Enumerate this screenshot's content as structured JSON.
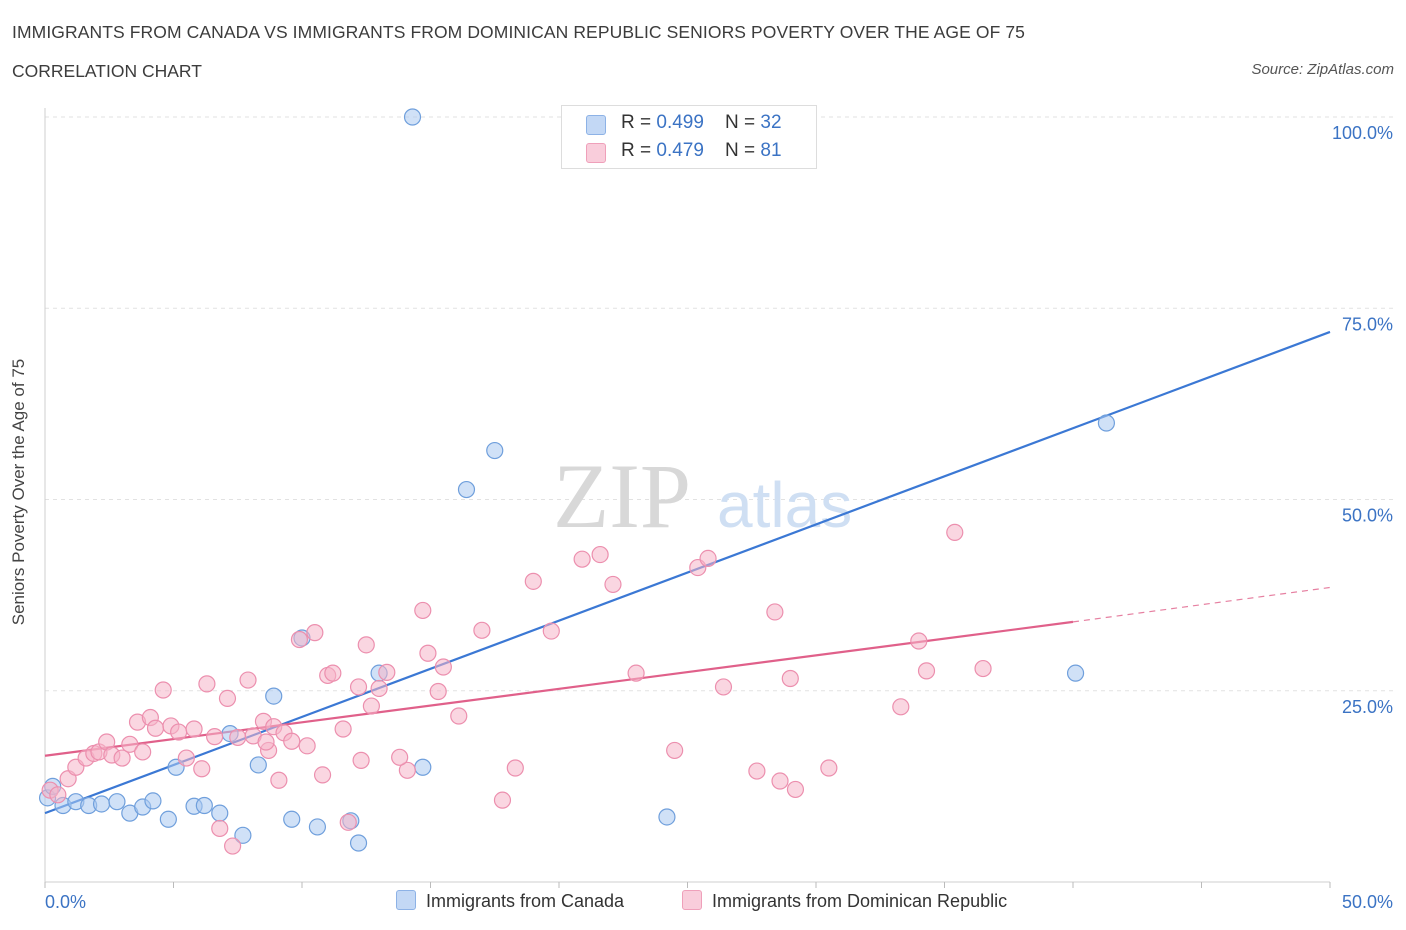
{
  "header": {
    "title": "IMMIGRANTS FROM CANADA VS IMMIGRANTS FROM DOMINICAN REPUBLIC SENIORS POVERTY OVER THE AGE OF 75",
    "subtitle": "CORRELATION CHART",
    "source": "Source: ZipAtlas.com"
  },
  "watermark": {
    "zip": "ZIP",
    "atlas": "atlas"
  },
  "legend": {
    "rows": [
      {
        "r_label": "R = ",
        "r_value": "0.499",
        "n_label": "N = ",
        "n_value": "32",
        "color": "#a9c8f0"
      },
      {
        "r_label": "R = ",
        "r_value": "0.479",
        "n_label": "N = ",
        "n_value": "81",
        "color": "#f5b5c9"
      }
    ]
  },
  "bottom_legend": {
    "items": [
      {
        "label": "Immigrants from Canada",
        "color": "#a9c8f0"
      },
      {
        "label": "Immigrants from Dominican Republic",
        "color": "#f5b5c9"
      }
    ]
  },
  "chart_data": {
    "type": "scatter",
    "ylabel": "Seniors Poverty Over the Age of 75",
    "xlim": [
      0,
      50
    ],
    "ylim": [
      0,
      100
    ],
    "x_tick_labels": [
      {
        "value": 0,
        "label": "0.0%"
      },
      {
        "value": 50,
        "label": "50.0%"
      }
    ],
    "y_tick_labels": [
      {
        "value": 25,
        "label": "25.0%"
      },
      {
        "value": 50,
        "label": "50.0%"
      },
      {
        "value": 75,
        "label": "75.0%"
      },
      {
        "value": 100,
        "label": "100.0%"
      }
    ],
    "grid": true,
    "series": [
      {
        "name": "Immigrants from Canada",
        "color": "#6f9fdc",
        "fill": "#a9c8f0",
        "trend": {
          "x": [
            0,
            50
          ],
          "y": [
            9.0,
            71.9
          ],
          "color": "#3b78d4",
          "dashed_from": null
        },
        "points": [
          [
            0.1,
            11.0
          ],
          [
            0.3,
            12.5
          ],
          [
            0.7,
            10.0
          ],
          [
            1.2,
            10.5
          ],
          [
            1.7,
            10.0
          ],
          [
            2.2,
            10.2
          ],
          [
            2.8,
            10.5
          ],
          [
            3.3,
            9.0
          ],
          [
            3.8,
            9.8
          ],
          [
            4.2,
            10.6
          ],
          [
            4.8,
            8.2
          ],
          [
            5.1,
            15.0
          ],
          [
            5.8,
            9.9
          ],
          [
            6.2,
            10.0
          ],
          [
            6.8,
            9.0
          ],
          [
            7.2,
            19.4
          ],
          [
            7.7,
            6.1
          ],
          [
            8.3,
            15.3
          ],
          [
            8.9,
            24.3
          ],
          [
            9.6,
            8.2
          ],
          [
            10.0,
            31.9
          ],
          [
            10.6,
            7.2
          ],
          [
            11.9,
            8.0
          ],
          [
            12.2,
            5.1
          ],
          [
            13.0,
            27.3
          ],
          [
            14.7,
            15.0
          ],
          [
            14.3,
            100.0
          ],
          [
            16.4,
            51.3
          ],
          [
            17.5,
            56.4
          ],
          [
            24.2,
            8.5
          ],
          [
            41.3,
            60.0
          ],
          [
            40.1,
            27.3
          ]
        ]
      },
      {
        "name": "Immigrants from Dominican Republic",
        "color": "#ec8fae",
        "fill": "#f5b5c9",
        "trend": {
          "x": [
            0,
            40,
            50
          ],
          "y": [
            16.5,
            34.0,
            38.5
          ],
          "color": "#e0608a",
          "dashed_from": 40
        },
        "points": [
          [
            0.2,
            12.0
          ],
          [
            0.5,
            11.4
          ],
          [
            0.9,
            13.5
          ],
          [
            1.2,
            15.0
          ],
          [
            1.6,
            16.2
          ],
          [
            1.9,
            16.8
          ],
          [
            2.1,
            17.0
          ],
          [
            2.4,
            18.3
          ],
          [
            2.6,
            16.6
          ],
          [
            3.0,
            16.2
          ],
          [
            3.3,
            18.0
          ],
          [
            3.6,
            20.9
          ],
          [
            3.8,
            17.0
          ],
          [
            4.1,
            21.5
          ],
          [
            4.3,
            20.1
          ],
          [
            4.6,
            25.1
          ],
          [
            4.9,
            20.4
          ],
          [
            5.2,
            19.6
          ],
          [
            5.5,
            16.2
          ],
          [
            5.8,
            20.0
          ],
          [
            6.1,
            14.8
          ],
          [
            6.3,
            25.9
          ],
          [
            6.6,
            19.0
          ],
          [
            6.8,
            7.0
          ],
          [
            7.1,
            24.0
          ],
          [
            7.3,
            4.7
          ],
          [
            7.5,
            18.9
          ],
          [
            7.9,
            26.4
          ],
          [
            8.1,
            19.1
          ],
          [
            8.5,
            21.0
          ],
          [
            8.7,
            17.2
          ],
          [
            8.9,
            20.3
          ],
          [
            9.1,
            13.3
          ],
          [
            9.3,
            19.5
          ],
          [
            9.6,
            18.4
          ],
          [
            9.9,
            31.7
          ],
          [
            10.2,
            17.8
          ],
          [
            10.5,
            32.6
          ],
          [
            10.8,
            14.0
          ],
          [
            11.0,
            27.0
          ],
          [
            11.2,
            27.3
          ],
          [
            11.6,
            20.0
          ],
          [
            11.8,
            7.8
          ],
          [
            12.2,
            25.5
          ],
          [
            12.5,
            31.0
          ],
          [
            12.7,
            23.0
          ],
          [
            13.0,
            25.3
          ],
          [
            13.3,
            27.4
          ],
          [
            14.1,
            14.6
          ],
          [
            13.8,
            16.3
          ],
          [
            14.7,
            35.5
          ],
          [
            14.9,
            29.9
          ],
          [
            15.3,
            24.9
          ],
          [
            15.5,
            28.1
          ],
          [
            16.1,
            21.7
          ],
          [
            17.0,
            32.9
          ],
          [
            17.8,
            10.7
          ],
          [
            18.3,
            14.9
          ],
          [
            19.0,
            39.3
          ],
          [
            19.7,
            32.8
          ],
          [
            20.9,
            42.2
          ],
          [
            21.6,
            42.8
          ],
          [
            22.1,
            38.9
          ],
          [
            23.0,
            27.3
          ],
          [
            24.5,
            17.2
          ],
          [
            25.4,
            41.1
          ],
          [
            25.8,
            42.3
          ],
          [
            26.4,
            25.5
          ],
          [
            27.7,
            14.5
          ],
          [
            28.4,
            35.3
          ],
          [
            28.6,
            13.2
          ],
          [
            29.0,
            26.6
          ],
          [
            29.2,
            12.1
          ],
          [
            30.5,
            14.9
          ],
          [
            33.3,
            22.9
          ],
          [
            34.0,
            31.5
          ],
          [
            34.3,
            27.6
          ],
          [
            35.4,
            45.7
          ],
          [
            36.5,
            27.9
          ],
          [
            12.3,
            15.9
          ],
          [
            8.6,
            18.3
          ]
        ]
      }
    ]
  }
}
